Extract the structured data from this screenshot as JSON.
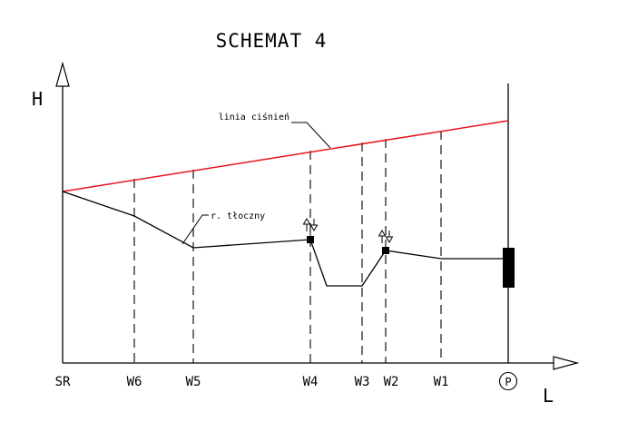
{
  "title": "SCHEMAT 4",
  "axes": {
    "y_label": "H",
    "x_label": "L"
  },
  "annotations": {
    "pressure_line_label": "linia ciśnień",
    "pipe_label": "r. tłoczny"
  },
  "stations": [
    "SR",
    "W6",
    "W5",
    "W4",
    "W3",
    "W2",
    "W1",
    "P"
  ],
  "colors": {
    "pressure_line": "#e8141b",
    "ink": "#000000"
  }
}
